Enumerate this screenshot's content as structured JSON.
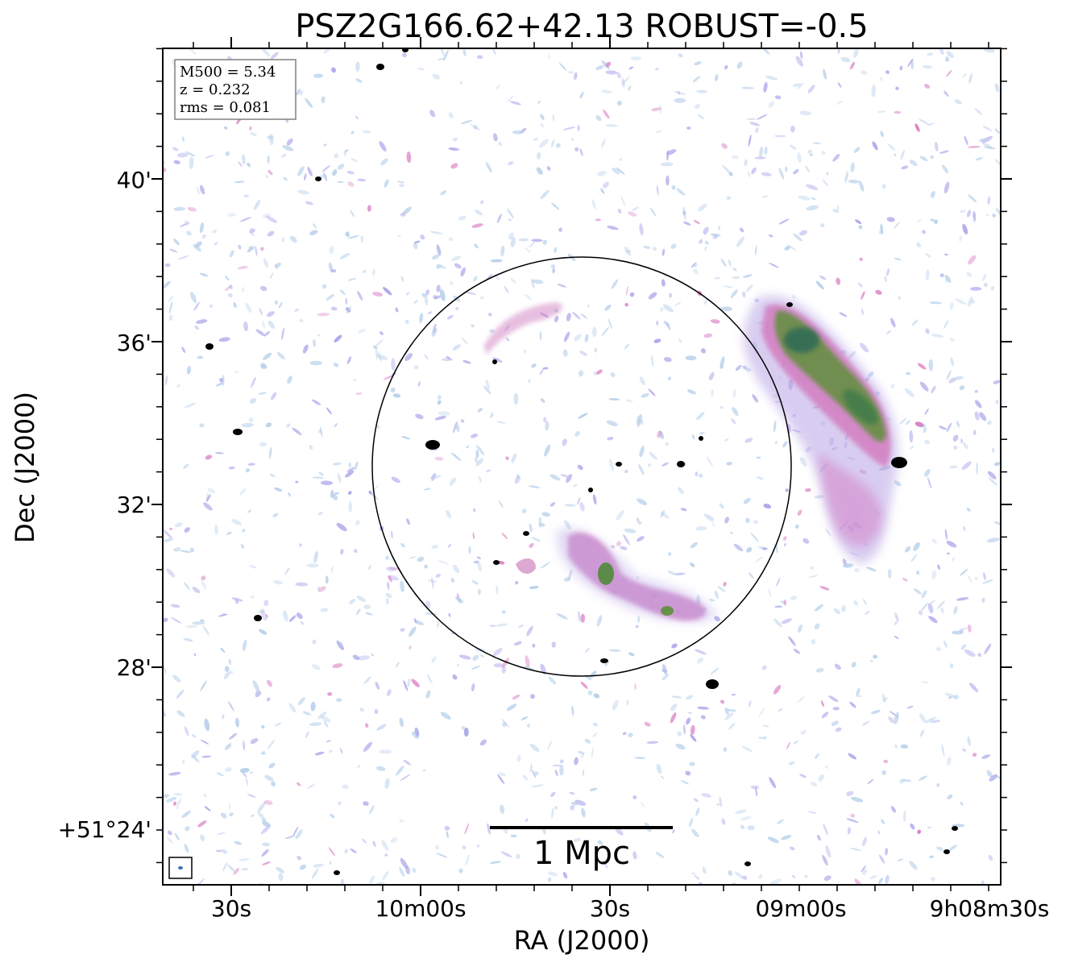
{
  "title": "PSZ2G166.62+42.13 ROBUST=-0.5",
  "xlabel": "RA (J2000)",
  "ylabel": "Dec (J2000)",
  "x_ticks": [
    "30s",
    "10m00s",
    "30s",
    "09m00s",
    "9h08m30s"
  ],
  "y_ticks": [
    "40'",
    "36'",
    "32'",
    "28'",
    "+51°24'"
  ],
  "info_box": {
    "m500": "M500 = 5.34",
    "z": "z = 0.232",
    "rms": "rms = 0.081"
  },
  "scale_bar": {
    "label": "1 Mpc"
  },
  "colors": {
    "background": "#ffffff",
    "noise_light": "#b7d0ea",
    "noise_violet": "#a9a5ea",
    "emission_pink": "#d97fc4",
    "emission_magenta": "#c0679f",
    "emission_green": "#5e8f3a",
    "emission_dark_green": "#2f6b4a",
    "point_source": "#000000"
  }
}
